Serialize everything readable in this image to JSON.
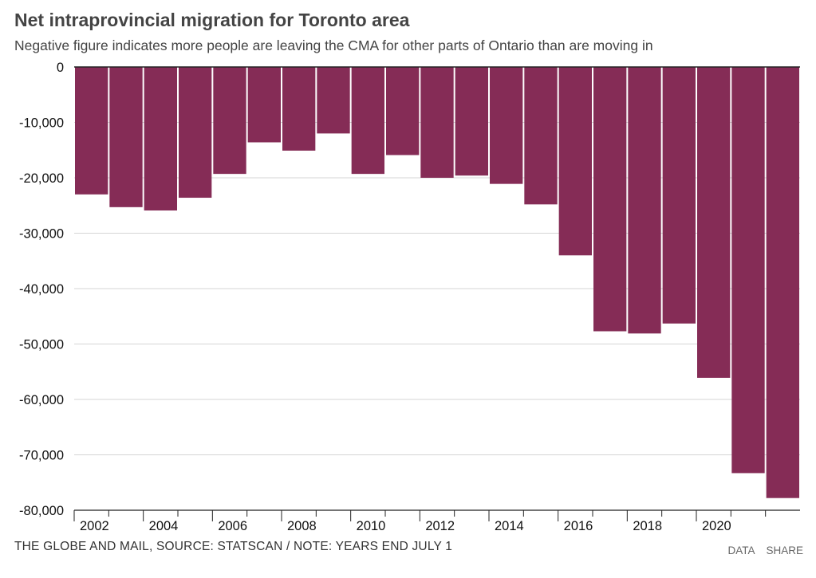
{
  "title": "Net intraprovincial migration for Toronto area",
  "subtitle": "Negative figure indicates more people are leaving the CMA for other parts of Ontario than are moving in",
  "source": "THE GLOBE AND MAIL, SOURCE: STATSCAN / NOTE: YEARS END JULY 1",
  "links": {
    "data": "DATA",
    "share": "SHARE"
  },
  "colors": {
    "bar": "#852c56",
    "grid": "#d5d5d5",
    "axis": "#222222"
  },
  "chart_data": {
    "type": "bar",
    "categories": [
      "2002",
      "2003",
      "2004",
      "2005",
      "2006",
      "2007",
      "2008",
      "2009",
      "2010",
      "2011",
      "2012",
      "2013",
      "2014",
      "2015",
      "2016",
      "2017",
      "2018",
      "2019",
      "2020",
      "2021",
      "2022"
    ],
    "values": [
      -23000,
      -25300,
      -25900,
      -23600,
      -19300,
      -13600,
      -15100,
      -12000,
      -19300,
      -15900,
      -20000,
      -19600,
      -21100,
      -24800,
      -34000,
      -47700,
      -48100,
      -46300,
      -56100,
      -73300,
      -77800
    ],
    "xticks": [
      "2002",
      "2004",
      "2006",
      "2008",
      "2010",
      "2012",
      "2014",
      "2016",
      "2018",
      "2020"
    ],
    "yticks": [
      "0",
      "-10,000",
      "-20,000",
      "-30,000",
      "-40,000",
      "-50,000",
      "-60,000",
      "-70,000",
      "-80,000"
    ],
    "ytick_values": [
      0,
      -10000,
      -20000,
      -30000,
      -40000,
      -50000,
      -60000,
      -70000,
      -80000
    ],
    "ylim": [
      -80000,
      0
    ],
    "grid": true,
    "xlabel": "",
    "ylabel": ""
  }
}
